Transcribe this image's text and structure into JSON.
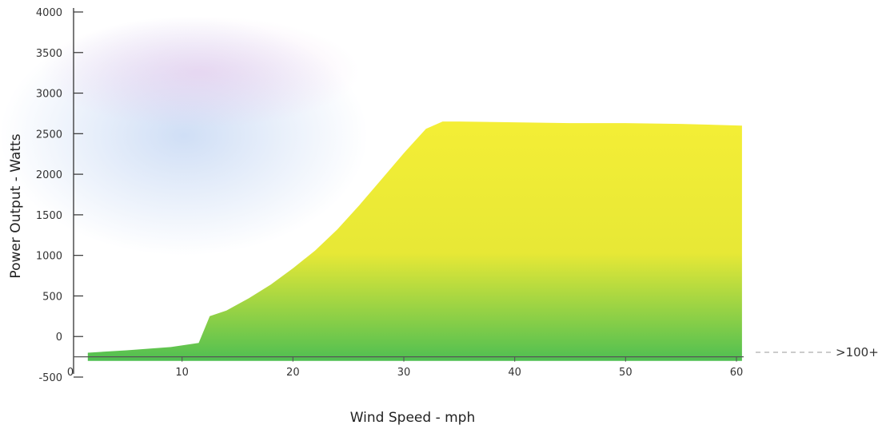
{
  "chart_data": {
    "type": "area",
    "title": "",
    "xlabel": "Wind Speed - mph",
    "ylabel": "Power Output - Watts",
    "xlim": [
      0,
      60
    ],
    "ylim": [
      -500,
      4000
    ],
    "x_ticks": [
      0,
      10,
      20,
      30,
      40,
      50,
      60
    ],
    "y_ticks": [
      -500,
      0,
      500,
      1000,
      1500,
      2000,
      2500,
      3000,
      3500,
      4000
    ],
    "grid": false,
    "legend": "none",
    "series": [
      {
        "x": [
          1.5,
          5,
          9,
          11.5,
          12.5,
          14,
          16,
          18,
          20,
          22,
          24,
          26,
          28,
          30,
          32,
          33.5,
          35,
          40,
          45,
          50,
          55,
          60.5
        ],
        "values": [
          -200,
          -170,
          -130,
          -80,
          250,
          320,
          470,
          640,
          840,
          1060,
          1320,
          1620,
          1940,
          2260,
          2560,
          2650,
          2650,
          2640,
          2630,
          2630,
          2620,
          2600
        ]
      }
    ],
    "annotation": {
      "text": ">100+",
      "meaning": "wind speed axis continues beyond 60 mph"
    },
    "colors": {
      "area_top": "#f4ee36",
      "area_bottom": "#4fbf52",
      "background_haze": "#a9c4ee"
    }
  }
}
